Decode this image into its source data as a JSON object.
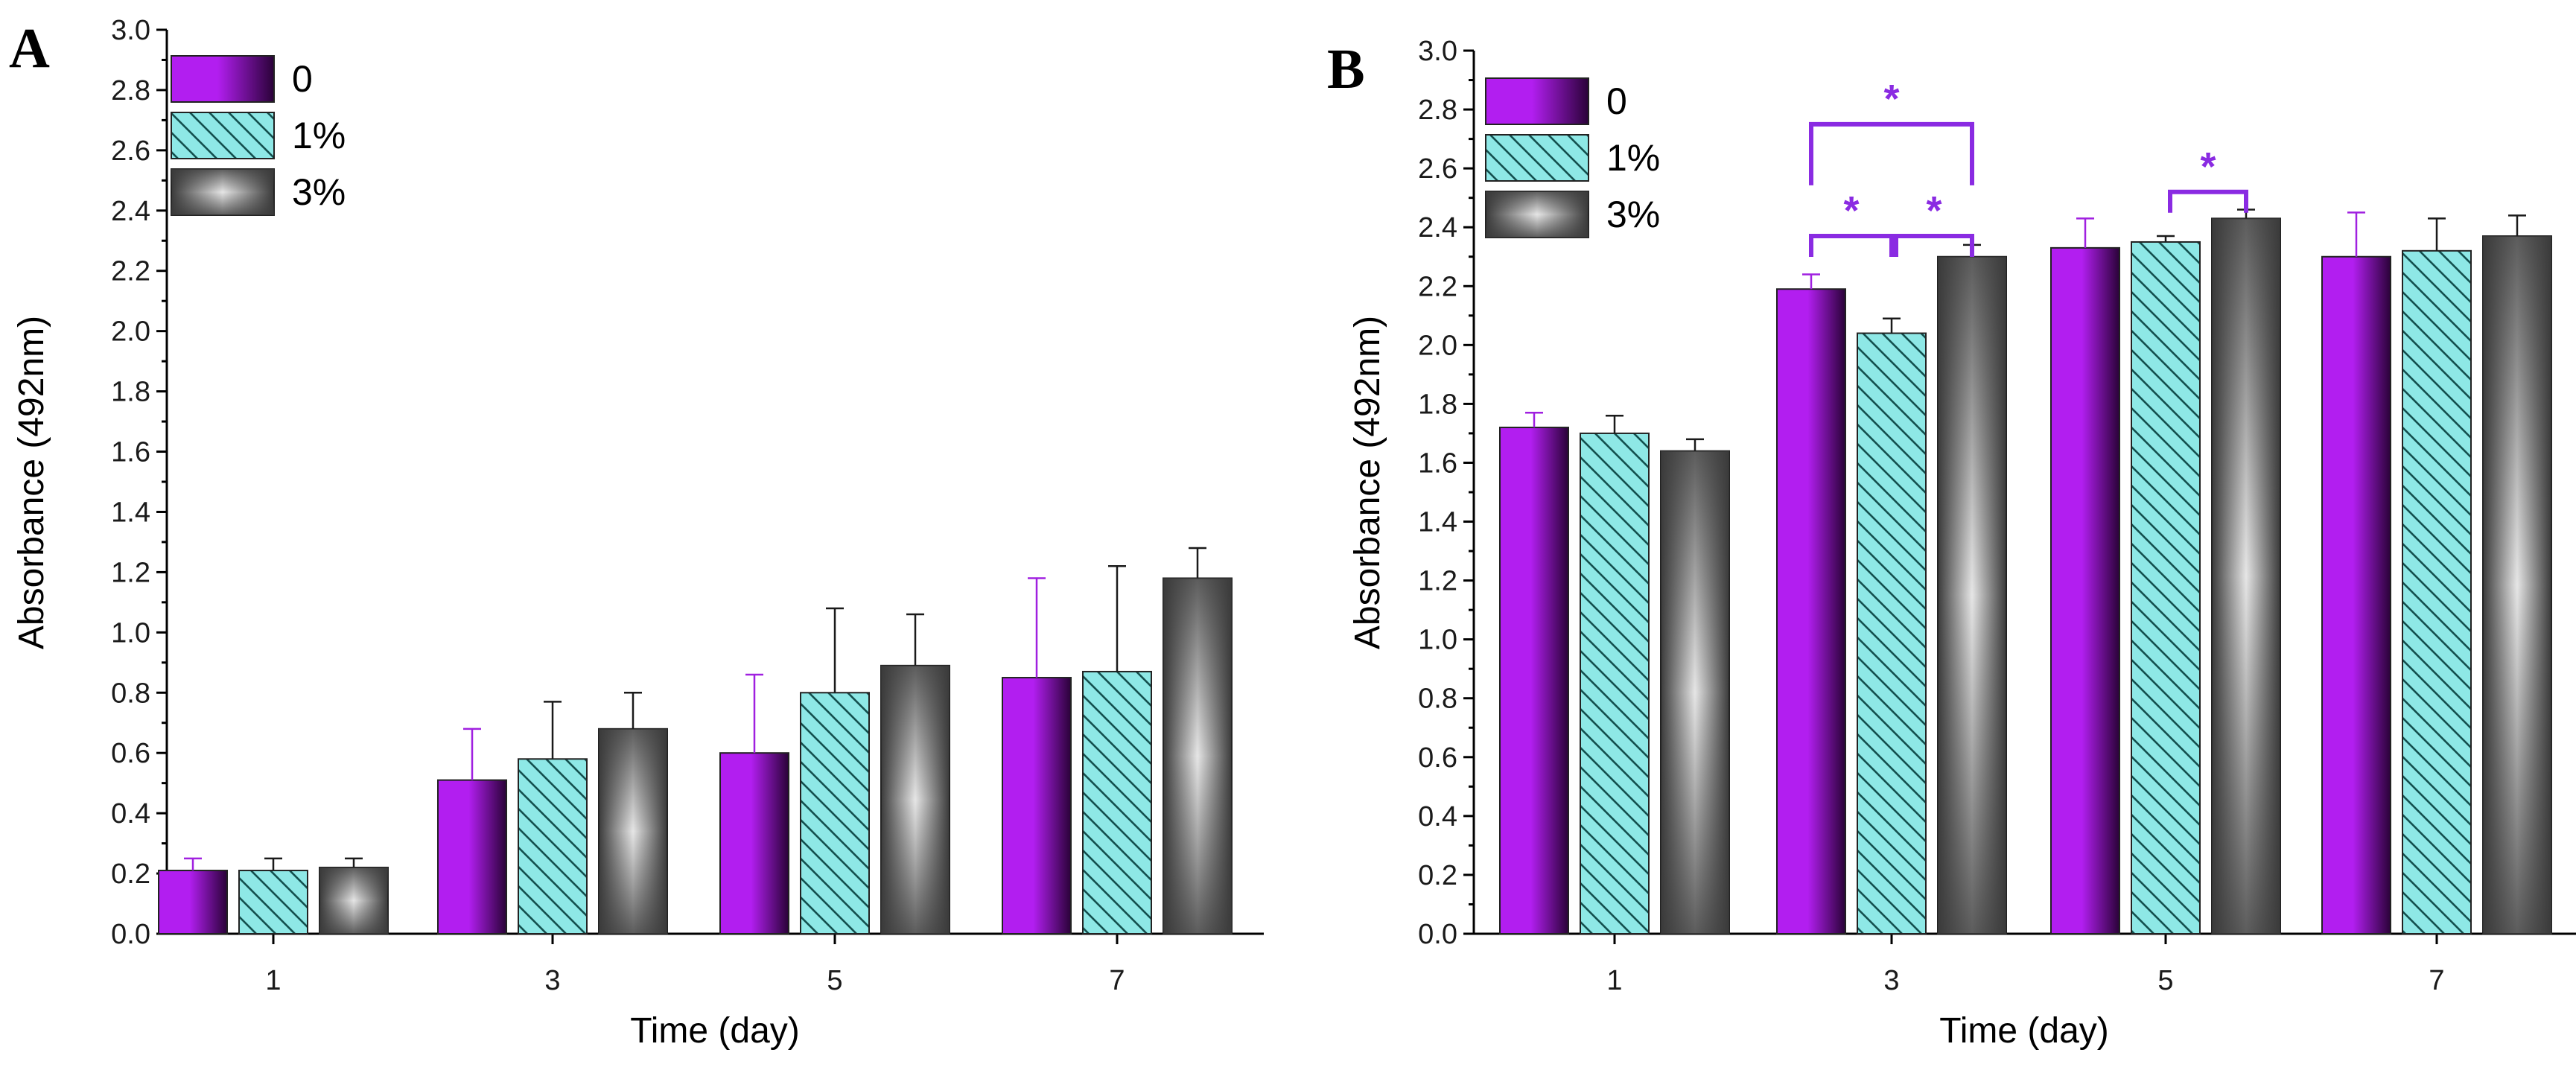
{
  "colors": {
    "purple": "#b21ef0",
    "purple_dark": "#2a0238",
    "teal": "#8ee8e6",
    "teal_hatch": "#14504f",
    "gray_light": "#e6e6e6",
    "gray_dark": "#3a3a3a",
    "sig": "#8a2be2"
  },
  "legend": [
    "0",
    "1%",
    "3%"
  ],
  "chart_data": [
    {
      "panel": "A",
      "type": "bar",
      "title": "",
      "xlabel": "Time (day)",
      "ylabel": "Absorbance (492nm)",
      "categories": [
        "1",
        "3",
        "5",
        "7"
      ],
      "ylim": [
        0,
        3.0
      ],
      "yticks": [
        "0.0",
        "0.2",
        "0.4",
        "0.6",
        "0.8",
        "1.0",
        "1.2",
        "1.4",
        "1.6",
        "1.8",
        "2.0",
        "2.2",
        "2.4",
        "2.6",
        "2.8",
        "3.0"
      ],
      "legend_position": "top-left",
      "series": [
        {
          "name": "0",
          "values": [
            0.21,
            0.51,
            0.6,
            0.85
          ],
          "errors": [
            0.04,
            0.17,
            0.26,
            0.33
          ]
        },
        {
          "name": "1%",
          "values": [
            0.21,
            0.58,
            0.8,
            0.87
          ],
          "errors": [
            0.04,
            0.19,
            0.28,
            0.35
          ]
        },
        {
          "name": "3%",
          "values": [
            0.22,
            0.68,
            0.89,
            1.18
          ],
          "errors": [
            0.03,
            0.12,
            0.17,
            0.1
          ]
        }
      ],
      "significance": []
    },
    {
      "panel": "B",
      "type": "bar",
      "title": "",
      "xlabel": "Time (day)",
      "ylabel": "Absorbance (492nm)",
      "categories": [
        "1",
        "3",
        "5",
        "7"
      ],
      "ylim": [
        0,
        3.0
      ],
      "yticks": [
        "0.0",
        "0.2",
        "0.4",
        "0.6",
        "0.8",
        "1.0",
        "1.2",
        "1.4",
        "1.6",
        "1.8",
        "2.0",
        "2.2",
        "2.4",
        "2.6",
        "2.8",
        "3.0"
      ],
      "legend_position": "top-left",
      "series": [
        {
          "name": "0",
          "values": [
            1.72,
            2.19,
            2.33,
            2.3
          ],
          "errors": [
            0.05,
            0.05,
            0.1,
            0.15
          ]
        },
        {
          "name": "1%",
          "values": [
            1.7,
            2.04,
            2.35,
            2.32
          ],
          "errors": [
            0.06,
            0.05,
            0.02,
            0.11
          ]
        },
        {
          "name": "3%",
          "values": [
            1.64,
            2.3,
            2.43,
            2.37
          ],
          "errors": [
            0.04,
            0.04,
            0.03,
            0.07
          ]
        }
      ],
      "significance": [
        {
          "category": "3",
          "from": 0,
          "to": 1,
          "level": 2.37,
          "label": "*"
        },
        {
          "category": "3",
          "from": 1,
          "to": 2,
          "level": 2.37,
          "label": "*"
        },
        {
          "category": "3",
          "from": 0,
          "to": 2,
          "level": 2.75,
          "label": "*"
        },
        {
          "category": "5",
          "from": 1,
          "to": 2,
          "level": 2.52,
          "label": "*"
        }
      ]
    }
  ]
}
